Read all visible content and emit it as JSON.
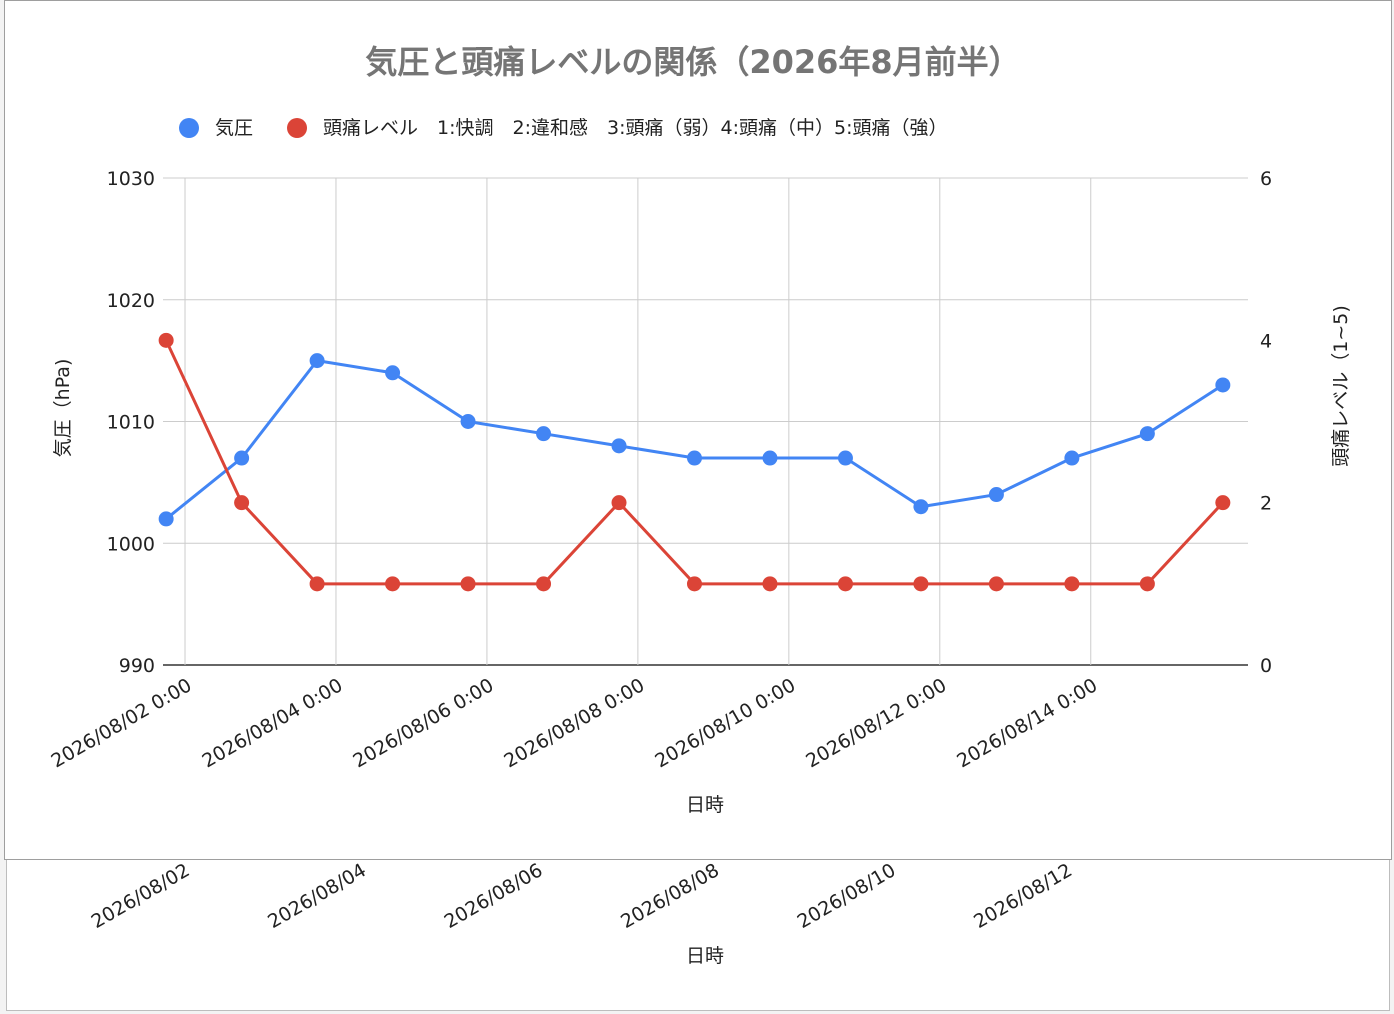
{
  "chart_data": {
    "type": "line",
    "title": "気圧と頭痛レベルの関係（2026年8月前半）",
    "xlabel": "日時",
    "ylabel_left": "気圧（hPa)",
    "ylabel_right": "頭痛レベル（1~5)",
    "ylim_left": [
      990,
      1030
    ],
    "ylim_right": [
      0,
      6
    ],
    "yticks_left": [
      990,
      1000,
      1010,
      1020,
      1030
    ],
    "yticks_right": [
      0,
      2,
      4,
      6
    ],
    "x_range": [
      "2026-08-01T17:00",
      "2026-08-16T02:00"
    ],
    "x": [
      "2026-08-01T18:00",
      "2026-08-02T18:00",
      "2026-08-03T18:00",
      "2026-08-04T18:00",
      "2026-08-05T18:00",
      "2026-08-06T18:00",
      "2026-08-07T18:00",
      "2026-08-08T18:00",
      "2026-08-09T18:00",
      "2026-08-10T18:00",
      "2026-08-11T18:00",
      "2026-08-12T18:00",
      "2026-08-13T18:00",
      "2026-08-14T18:00",
      "2026-08-15T18:00"
    ],
    "xticks": [
      {
        "date": "2026-08-02T00:00",
        "label": "2026/08/02 0:00"
      },
      {
        "date": "2026-08-04T00:00",
        "label": "2026/08/04 0:00"
      },
      {
        "date": "2026-08-06T00:00",
        "label": "2026/08/06 0:00"
      },
      {
        "date": "2026-08-08T00:00",
        "label": "2026/08/08 0:00"
      },
      {
        "date": "2026-08-10T00:00",
        "label": "2026/08/10 0:00"
      },
      {
        "date": "2026-08-12T00:00",
        "label": "2026/08/12 0:00"
      },
      {
        "date": "2026-08-14T00:00",
        "label": "2026/08/14 0:00"
      }
    ],
    "series": [
      {
        "name": "気圧",
        "axis": "left",
        "color": "#4285f4",
        "values": [
          1002,
          1007,
          1015,
          1014,
          1010,
          1009,
          1008,
          1007,
          1007,
          1007,
          1003,
          1004,
          1007,
          1009,
          1013
        ]
      },
      {
        "name": "頭痛レベル　1:快調　2:違和感　3:頭痛（弱）4:頭痛（中）5:頭痛（強）",
        "axis": "right",
        "color": "#db4437",
        "values": [
          4,
          2,
          1,
          1,
          1,
          1,
          2,
          1,
          1,
          1,
          1,
          1,
          1,
          1,
          2
        ]
      }
    ],
    "grid": true,
    "legend_position": "top-left"
  },
  "background_chart": {
    "xticks": [
      "2026/08/02",
      "2026/08/04",
      "2026/08/06",
      "2026/08/08",
      "2026/08/10",
      "2026/08/12"
    ],
    "xlabel": "日時"
  }
}
